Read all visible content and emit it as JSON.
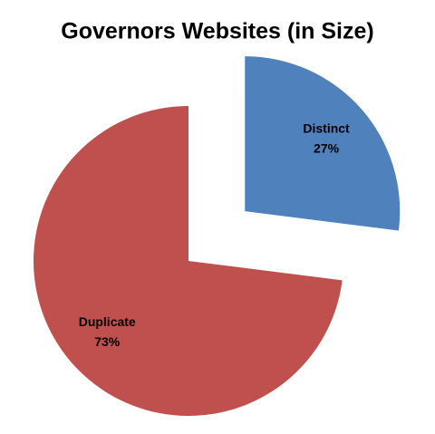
{
  "chart_data": {
    "type": "pie",
    "title": "Governors Websites (in Size)",
    "categories": [
      "Distinct",
      "Duplicate"
    ],
    "values": [
      27,
      73
    ],
    "value_labels": [
      "27%",
      "73%"
    ],
    "colors": [
      "#4f81bd",
      "#c0504d"
    ]
  }
}
